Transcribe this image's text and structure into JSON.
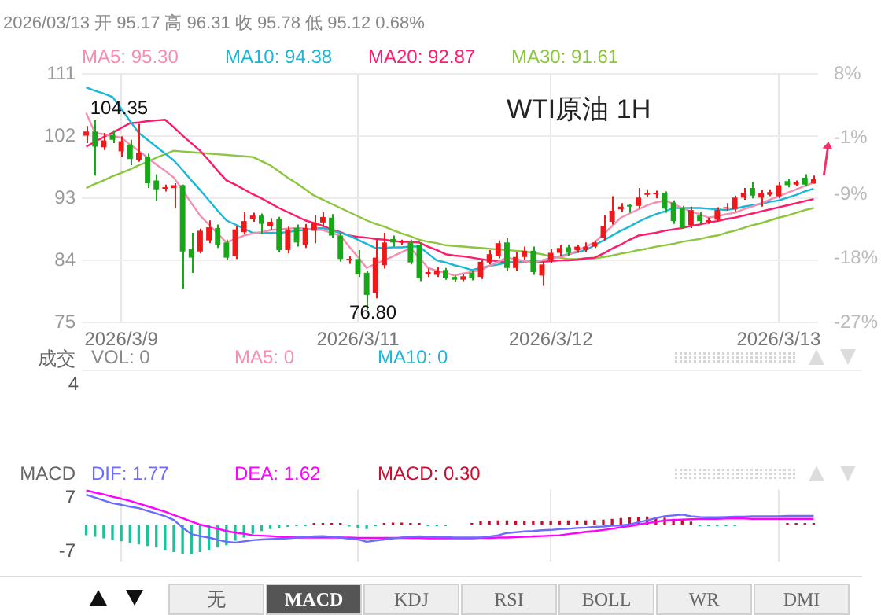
{
  "chart_data": [
    {
      "type": "candlestick",
      "title": "WTI原油 1H",
      "subtitle": "2026/03/13 开 95.17 高 96.31 收 95.78 低 95.12 0.68%",
      "categories": [
        null,
        null,
        null,
        null,
        "2026/3/9",
        null,
        null,
        null,
        null,
        null,
        null,
        null,
        null,
        null,
        null,
        null,
        null,
        null,
        null,
        null,
        null,
        null,
        null,
        null,
        null,
        null,
        null,
        null,
        null,
        null,
        null,
        "2026/3/11",
        null,
        null,
        null,
        null,
        null,
        null,
        null,
        null,
        null,
        null,
        null,
        null,
        null,
        null,
        null,
        null,
        null,
        null,
        null,
        null,
        null,
        "2026/3/12",
        null,
        null,
        null,
        null,
        null,
        null,
        null,
        null,
        null,
        null,
        null,
        null,
        null,
        null,
        null,
        null,
        null,
        null,
        null,
        null,
        null,
        null,
        null,
        null,
        null,
        "2026/3/13",
        null,
        null,
        null,
        null
      ],
      "ohlc": [
        [
          102.1,
          103.5,
          101.0,
          102.7
        ],
        [
          102.7,
          104.35,
          96.3,
          100.5
        ],
        [
          100.4,
          102.5,
          100.0,
          101.4
        ],
        [
          102.2,
          102.9,
          101.0,
          101.5
        ],
        [
          99.8,
          102.0,
          99.0,
          101.3
        ],
        [
          100.8,
          101.5,
          97.8,
          98.7
        ],
        [
          98.6,
          103.8,
          98.3,
          99.6
        ],
        [
          99.0,
          99.5,
          94.5,
          95.2
        ],
        [
          95.6,
          96.5,
          92.6,
          94.3
        ],
        [
          94.4,
          95.0,
          94.0,
          94.6
        ],
        [
          94.5,
          95.2,
          91.6,
          94.9
        ],
        [
          94.9,
          95.0,
          79.9,
          85.3
        ],
        [
          85.6,
          88.0,
          82.2,
          84.4
        ],
        [
          85.3,
          88.6,
          85.0,
          88.3
        ],
        [
          86.9,
          89.8,
          86.5,
          88.8
        ],
        [
          88.7,
          89.2,
          85.8,
          86.3
        ],
        [
          86.6,
          87.0,
          84.0,
          84.4
        ],
        [
          84.6,
          89.0,
          84.2,
          88.5
        ],
        [
          88.1,
          91.0,
          87.8,
          89.7
        ],
        [
          90.0,
          90.9,
          89.6,
          90.5
        ],
        [
          90.5,
          90.8,
          87.8,
          89.3
        ],
        [
          89.0,
          90.1,
          88.5,
          89.6
        ],
        [
          90.0,
          90.3,
          85.2,
          85.5
        ],
        [
          85.5,
          88.9,
          85.0,
          88.5
        ],
        [
          88.7,
          89.2,
          86.0,
          86.6
        ],
        [
          86.3,
          89.3,
          85.8,
          88.7
        ],
        [
          88.3,
          90.5,
          86.5,
          89.5
        ],
        [
          89.5,
          91.0,
          89.0,
          90.3
        ],
        [
          90.2,
          90.7,
          87.3,
          87.6
        ],
        [
          87.6,
          88.0,
          83.8,
          84.2
        ],
        [
          84.0,
          84.6,
          83.5,
          84.2
        ],
        [
          84.2,
          85.5,
          81.6,
          82.0
        ],
        [
          82.2,
          82.5,
          76.8,
          79.0
        ],
        [
          79.3,
          87.0,
          78.5,
          84.4
        ],
        [
          83.3,
          88.0,
          82.8,
          86.6
        ],
        [
          87.1,
          87.6,
          86.0,
          86.6
        ],
        [
          86.6,
          87.0,
          86.2,
          86.7
        ],
        [
          86.6,
          87.0,
          83.4,
          83.7
        ],
        [
          86.2,
          86.6,
          81.0,
          81.5
        ],
        [
          82.0,
          82.8,
          81.6,
          82.3
        ],
        [
          81.9,
          83.0,
          81.6,
          82.5
        ],
        [
          82.6,
          82.9,
          81.2,
          81.5
        ],
        [
          81.6,
          81.8,
          80.9,
          81.2
        ],
        [
          81.2,
          82.0,
          81.0,
          81.7
        ],
        [
          82.2,
          82.5,
          81.1,
          81.5
        ],
        [
          81.6,
          84.0,
          81.3,
          83.8
        ],
        [
          83.7,
          85.5,
          83.4,
          84.9
        ],
        [
          84.6,
          86.9,
          84.3,
          86.5
        ],
        [
          86.6,
          87.2,
          82.5,
          82.9
        ],
        [
          82.9,
          85.2,
          82.5,
          84.5
        ],
        [
          84.5,
          86.0,
          84.1,
          85.4
        ],
        [
          85.4,
          86.0,
          81.9,
          82.3
        ],
        [
          81.8,
          83.9,
          80.3,
          83.4
        ],
        [
          84.0,
          85.6,
          83.6,
          85.1
        ],
        [
          85.1,
          86.3,
          84.7,
          85.8
        ],
        [
          85.9,
          86.3,
          84.7,
          85.1
        ],
        [
          85.5,
          86.3,
          85.1,
          86.0
        ],
        [
          85.5,
          86.6,
          85.2,
          86.0
        ],
        [
          86.0,
          86.9,
          85.8,
          86.6
        ],
        [
          87.3,
          90.5,
          86.9,
          89.0
        ],
        [
          89.6,
          93.3,
          89.2,
          91.2
        ],
        [
          91.4,
          92.3,
          91.0,
          91.8
        ],
        [
          91.9,
          92.2,
          90.9,
          91.8
        ],
        [
          91.9,
          94.5,
          91.5,
          93.1
        ],
        [
          93.5,
          94.3,
          93.2,
          93.8
        ],
        [
          93.6,
          94.1,
          93.0,
          93.7
        ],
        [
          93.8,
          94.0,
          90.9,
          91.5
        ],
        [
          92.4,
          92.7,
          89.3,
          89.7
        ],
        [
          91.6,
          91.9,
          88.6,
          88.8
        ],
        [
          89.1,
          91.8,
          88.7,
          91.3
        ],
        [
          90.5,
          91.0,
          89.3,
          89.7
        ],
        [
          89.6,
          90.2,
          89.3,
          89.8
        ],
        [
          89.9,
          91.7,
          89.6,
          91.3
        ],
        [
          91.5,
          92.3,
          91.2,
          91.7
        ],
        [
          91.4,
          93.4,
          91.1,
          93.1
        ],
        [
          93.1,
          94.5,
          92.8,
          93.8
        ],
        [
          94.5,
          95.3,
          93.0,
          93.4
        ],
        [
          93.1,
          94.2,
          91.8,
          93.8
        ],
        [
          93.5,
          94.3,
          93.3,
          93.9
        ],
        [
          93.3,
          95.3,
          93.0,
          94.9
        ],
        [
          95.5,
          95.8,
          94.6,
          94.9
        ],
        [
          95.0,
          95.6,
          94.8,
          95.3
        ],
        [
          96.0,
          96.5,
          94.7,
          95.0
        ],
        [
          95.17,
          96.31,
          95.12,
          95.78
        ]
      ],
      "colors": [
        "#f01818",
        "#16a816",
        "#f01818",
        "#16a816",
        "#f01818",
        "#16a816",
        "#f01818",
        "#16a816",
        "#16a816",
        "#f01818",
        "#f01818",
        "#16a816",
        "#16a816",
        "#f01818",
        "#f01818",
        "#16a816",
        "#16a816",
        "#f01818",
        "#f01818",
        "#f01818",
        "#16a816",
        "#f01818",
        "#16a816",
        "#f01818",
        "#16a816",
        "#f01818",
        "#f01818",
        "#f01818",
        "#16a816",
        "#16a816",
        "#f01818",
        "#16a816",
        "#16a816",
        "#f01818",
        "#f01818",
        "#16a816",
        "#f01818",
        "#16a816",
        "#16a816",
        "#f01818",
        "#f01818",
        "#16a816",
        "#16a816",
        "#f01818",
        "#16a816",
        "#f01818",
        "#f01818",
        "#f01818",
        "#16a816",
        "#f01818",
        "#f01818",
        "#16a816",
        "#f01818",
        "#f01818",
        "#f01818",
        "#16a816",
        "#f01818",
        "#f01818",
        "#f01818",
        "#f01818",
        "#f01818",
        "#f01818",
        "#16a816",
        "#f01818",
        "#f01818",
        "#f01818",
        "#16a816",
        "#16a816",
        "#16a816",
        "#f01818",
        "#16a816",
        "#f01818",
        "#f01818",
        "#f01818",
        "#f01818",
        "#f01818",
        "#16a816",
        "#f01818",
        "#f01818",
        "#f01818",
        "#16a816",
        "#f01818",
        "#16a816",
        "#f01818"
      ],
      "series": [
        {
          "name": "MA5: 95.30",
          "color": "#f48fb1",
          "type": "line",
          "values": [
            105.4,
            102.5,
            102.3,
            102.0,
            101.8,
            100.8,
            99.9,
            98.9,
            97.9,
            97.0,
            96.0,
            94.2,
            92.3,
            90.5,
            89.2,
            87.9,
            86.6,
            87.1,
            87.6,
            87.9,
            88.1,
            88.4,
            88.5,
            88.6,
            88.7,
            88.6,
            88.5,
            88.4,
            88.0,
            87.6,
            86.0,
            84.5,
            82.9,
            83.5,
            84.0,
            84.6,
            85.2,
            85.8,
            84.4,
            82.9,
            82.5,
            82.2,
            81.8,
            82.1,
            82.3,
            82.6,
            83.2,
            83.8,
            84.4,
            84.2,
            83.9,
            83.7,
            84.0,
            84.3,
            84.5,
            84.8,
            85.4,
            86.0,
            86.6,
            87.8,
            89.0,
            90.2,
            90.8,
            91.4,
            92.0,
            92.4,
            92.7,
            92.2,
            91.6,
            91.1,
            90.7,
            90.2,
            90.4,
            90.7,
            90.9,
            91.4,
            91.8,
            92.3,
            92.8,
            93.3,
            93.8,
            94.3,
            94.8,
            95.3
          ]
        },
        {
          "name": "MA10: 94.38",
          "color": "#1ab8d8",
          "type": "line",
          "values": [
            109.1,
            108.6,
            108.2,
            107.7,
            106.0,
            104.2,
            102.5,
            101.5,
            100.5,
            99.5,
            98.5,
            97.1,
            95.6,
            94.2,
            92.7,
            91.2,
            89.8,
            89.2,
            88.6,
            88.0,
            88.0,
            88.0,
            88.0,
            88.1,
            88.3,
            88.4,
            88.6,
            88.7,
            88.3,
            88.0,
            87.6,
            87.0,
            86.4,
            85.8,
            85.8,
            85.9,
            85.9,
            86.0,
            86.0,
            85.0,
            84.0,
            83.7,
            83.3,
            83.0,
            82.6,
            82.9,
            83.2,
            83.4,
            83.7,
            83.8,
            83.8,
            83.9,
            84.0,
            84.3,
            84.6,
            84.9,
            85.2,
            85.5,
            86.2,
            86.9,
            87.6,
            88.3,
            88.9,
            89.6,
            90.2,
            90.7,
            91.1,
            91.6,
            91.6,
            91.6,
            91.6,
            91.5,
            91.4,
            91.3,
            91.5,
            91.8,
            92.0,
            92.2,
            92.5,
            92.7,
            93.1,
            93.5,
            94.0,
            94.4
          ]
        },
        {
          "name": "MA20: 92.87",
          "color": "#ff1a6e",
          "type": "line",
          "values": [
            100.5,
            101.2,
            101.9,
            102.5,
            103.2,
            103.9,
            104.0,
            104.2,
            104.3,
            104.4,
            103.3,
            102.1,
            101.0,
            99.9,
            98.5,
            97.0,
            95.6,
            95.0,
            94.3,
            93.6,
            93.0,
            92.3,
            91.6,
            91.0,
            90.4,
            89.8,
            89.4,
            89.0,
            88.5,
            88.1,
            87.6,
            87.4,
            87.3,
            87.1,
            87.0,
            86.8,
            86.7,
            86.7,
            86.6,
            86.0,
            85.5,
            84.9,
            84.7,
            84.6,
            84.4,
            84.2,
            84.0,
            83.9,
            83.7,
            83.7,
            83.8,
            83.8,
            83.8,
            83.9,
            84.0,
            84.0,
            84.1,
            84.3,
            84.4,
            85.0,
            85.7,
            86.3,
            87.0,
            87.6,
            87.8,
            88.0,
            88.3,
            88.5,
            88.7,
            89.0,
            89.2,
            89.5,
            89.7,
            90.0,
            90.2,
            90.5,
            90.8,
            91.1,
            91.4,
            91.7,
            92.0,
            92.3,
            92.6,
            92.9
          ]
        },
        {
          "name": "MA30: 91.61",
          "color": "#8cc63f",
          "type": "line",
          "values": [
            94.5,
            95.1,
            95.6,
            96.2,
            96.7,
            97.2,
            97.8,
            98.3,
            98.9,
            99.4,
            99.9,
            99.8,
            99.7,
            99.6,
            99.5,
            99.4,
            99.3,
            99.2,
            99.1,
            99.0,
            98.4,
            97.8,
            96.9,
            96.0,
            95.2,
            94.3,
            93.4,
            92.8,
            92.2,
            91.6,
            91.0,
            90.4,
            89.8,
            89.3,
            88.9,
            88.4,
            87.9,
            87.5,
            87.0,
            86.7,
            86.5,
            86.2,
            86.1,
            86.0,
            85.9,
            85.8,
            85.7,
            85.6,
            85.5,
            85.4,
            85.3,
            85.1,
            84.9,
            84.6,
            84.4,
            84.2,
            84.2,
            84.3,
            84.3,
            84.5,
            84.7,
            85.0,
            85.2,
            85.5,
            85.7,
            86.0,
            86.2,
            86.4,
            86.7,
            86.9,
            87.1,
            87.4,
            87.6,
            88.0,
            88.3,
            88.7,
            89.1,
            89.4,
            89.8,
            90.2,
            90.5,
            90.9,
            91.3,
            91.6
          ]
        }
      ],
      "ylim": [
        75,
        111
      ],
      "yticks": [
        75,
        84,
        93,
        102,
        111
      ],
      "y2lim": [
        -27,
        8
      ],
      "y2ticks": [
        {
          "value": -27,
          "label": "-27%"
        },
        {
          "value": -18,
          "label": "-18%"
        },
        {
          "value": -9,
          "label": "-9%"
        },
        {
          "value": -1,
          "label": "-1%"
        },
        {
          "value": 8,
          "label": "8%"
        }
      ],
      "grid": true,
      "legend": "top left",
      "annotations": [
        "104.35",
        "76.80"
      ]
    },
    {
      "type": "other",
      "title": "成交",
      "series": [
        {
          "name": "VOL: 0",
          "color": "#888888"
        },
        {
          "name": "MA5: 0",
          "color": "#f48fb1"
        },
        {
          "name": "MA10: 0",
          "color": "#1ab8d8"
        }
      ],
      "annotations": [
        "4"
      ]
    },
    {
      "type": "line",
      "title": "MACD",
      "tick_labels": "y",
      "legend": "top left",
      "grid": "x",
      "categories": [
        null,
        null,
        null,
        null,
        "2026/3/9",
        null,
        null,
        null,
        null,
        null,
        null,
        null,
        null,
        null,
        null,
        null,
        null,
        null,
        null,
        null,
        null,
        null,
        null,
        null,
        null,
        null,
        null,
        null,
        null,
        null,
        null,
        "2026/3/11",
        null,
        null,
        null,
        null,
        null,
        null,
        null,
        null,
        null,
        null,
        null,
        null,
        null,
        null,
        null,
        null,
        null,
        null,
        null,
        null,
        null,
        "2026/3/12",
        null,
        null,
        null,
        null,
        null,
        null,
        null,
        null,
        null,
        null,
        null,
        null,
        null,
        null,
        null,
        null,
        null,
        null,
        null,
        null,
        null,
        null,
        null,
        null,
        null,
        "2026/3/13",
        null,
        null,
        null,
        null
      ],
      "series": [
        {
          "name": "DIF: 1.77",
          "color": "#6b6bff",
          "values": [
            7.8,
            7.1,
            6.3,
            5.6,
            5.2,
            4.7,
            4.3,
            3.6,
            2.9,
            2.2,
            1.2,
            -0.8,
            -2.5,
            -3.0,
            -3.4,
            -4.0,
            -4.5,
            -4.7,
            -4.4,
            -4.1,
            -3.9,
            -3.8,
            -3.7,
            -3.6,
            -3.4,
            -3.3,
            -3.1,
            -3.0,
            -3.2,
            -3.4,
            -3.7,
            -3.9,
            -4.5,
            -4.2,
            -3.9,
            -3.6,
            -3.4,
            -3.2,
            -3.1,
            -3.2,
            -3.3,
            -3.3,
            -3.4,
            -3.4,
            -3.4,
            -3.4,
            -3.1,
            -2.8,
            -2.2,
            -2.0,
            -1.8,
            -1.7,
            -1.5,
            -1.4,
            -1.2,
            -1.1,
            -0.9,
            -0.8,
            -0.6,
            -0.5,
            -0.3,
            -0.2,
            0,
            0.6,
            1.1,
            1.7,
            2.2,
            2.4,
            2.6,
            2.2,
            2.0,
            1.9,
            1.9,
            2.0,
            2.1,
            2.1,
            2.2,
            2.2,
            2.2,
            2.2,
            2.3,
            2.3,
            2.3,
            2.3
          ]
        },
        {
          "name": "DEA: 1.62",
          "color": "#ff00ff",
          "values": [
            9.0,
            8.4,
            7.9,
            7.3,
            6.8,
            6.2,
            5.5,
            4.8,
            4.1,
            3.4,
            2.5,
            1.7,
            0.8,
            0,
            -0.6,
            -1.1,
            -1.7,
            -2.1,
            -2.4,
            -2.8,
            -2.9,
            -3.0,
            -3.2,
            -3.3,
            -3.4,
            -3.4,
            -3.4,
            -3.4,
            -3.4,
            -3.4,
            -3.4,
            -3.5,
            -3.5,
            -3.5,
            -3.5,
            -3.5,
            -3.5,
            -3.5,
            -3.5,
            -3.6,
            -3.6,
            -3.6,
            -3.6,
            -3.6,
            -3.6,
            -3.5,
            -3.5,
            -3.4,
            -3.4,
            -3.3,
            -3.2,
            -3.1,
            -3.0,
            -2.9,
            -2.8,
            -2.5,
            -2.2,
            -1.9,
            -1.7,
            -1.4,
            -1.1,
            -0.7,
            -0.4,
            0,
            0.4,
            0.7,
            1.1,
            1.2,
            1.3,
            1.4,
            1.5,
            1.5,
            1.5,
            1.6,
            1.6,
            1.6,
            1.5,
            1.5,
            1.5,
            1.5,
            1.5,
            1.5,
            1.5,
            1.5
          ]
        },
        {
          "name": "MACD: 0.30",
          "type": "bar",
          "color": "#c8102e",
          "colors": [
            "#1fbf9a",
            "#1fbf9a",
            "#1fbf9a",
            "#1fbf9a",
            "#1fbf9a",
            "#1fbf9a",
            "#1fbf9a",
            "#1fbf9a",
            "#1fbf9a",
            "#1fbf9a",
            "#1fbf9a",
            "#1fbf9a",
            "#1fbf9a",
            "#1fbf9a",
            "#1fbf9a",
            "#1fbf9a",
            "#1fbf9a",
            "#1fbf9a",
            "#1fbf9a",
            "#1fbf9a",
            "#1fbf9a",
            "#1fbf9a",
            "#1fbf9a",
            "#1fbf9a",
            "#1fbf9a",
            "#1fbf9a",
            "#c8102e",
            "#c8102e",
            "#c8102e",
            "#c8102e",
            "#1fbf9a",
            "#1fbf9a",
            "#1fbf9a",
            "#1fbf9a",
            "#c8102e",
            "#c8102e",
            "#c8102e",
            "#c8102e",
            "#c8102e",
            "#1fbf9a",
            "#1fbf9a",
            "#1fbf9a",
            "#c8102e",
            "#c8102e",
            "#c8102e",
            "#c8102e",
            "#c8102e",
            "#c8102e",
            "#c8102e",
            "#c8102e",
            "#c8102e",
            "#c8102e",
            "#c8102e",
            "#c8102e",
            "#c8102e",
            "#c8102e",
            "#c8102e",
            "#c8102e",
            "#c8102e",
            "#c8102e",
            "#c8102e",
            "#c8102e",
            "#c8102e",
            "#c8102e",
            "#c8102e",
            "#c8102e",
            "#c8102e",
            "#c8102e",
            "#c8102e",
            "#c8102e",
            "#1fbf9a",
            "#1fbf9a",
            "#1fbf9a",
            "#1fbf9a",
            "#1fbf9a",
            "#c8102e",
            "#c8102e",
            "#c8102e",
            "#c8102e",
            "#c8102e",
            "#c8102e",
            "#c8102e",
            "#c8102e",
            "#c8102e"
          ],
          "values": [
            -2.8,
            -3.2,
            -3.6,
            -4.0,
            -4.4,
            -4.8,
            -5.2,
            -5.6,
            -6.0,
            -6.6,
            -7.2,
            -7.6,
            -7.8,
            -7.2,
            -6.6,
            -6.0,
            -5.4,
            -4.2,
            -3.4,
            -2.4,
            -1.7,
            -1.2,
            -0.9,
            -0.6,
            -0.4,
            -0.2,
            0.1,
            0.3,
            0.3,
            0.2,
            -0.5,
            -0.8,
            -1.2,
            -0.3,
            0.3,
            0.5,
            0.5,
            0.4,
            0.1,
            -0.1,
            -0.1,
            -0.1,
            null,
            null,
            0.1,
            0.9,
            1.0,
            1.1,
            1.1,
            1.0,
            1.0,
            1.0,
            0.9,
            1.0,
            1.0,
            1.1,
            1.1,
            1.1,
            1.2,
            1.3,
            1.5,
            1.7,
            1.9,
            2.0,
            2.1,
            2.0,
            1.8,
            1.5,
            1.2,
            0.8,
            -0.3,
            -0.4,
            -0.4,
            -0.3,
            -0.1,
            null,
            null,
            null,
            null,
            null,
            0.2,
            0.2,
            0.3,
            0.3
          ]
        }
      ],
      "ylim": [
        -9.6,
        9.2
      ],
      "yticks": [
        -7,
        7
      ],
      "annotations": [
        "无",
        "MACD",
        "KDJ",
        "RSI",
        "BOLL",
        "WR",
        "DMI"
      ]
    }
  ]
}
